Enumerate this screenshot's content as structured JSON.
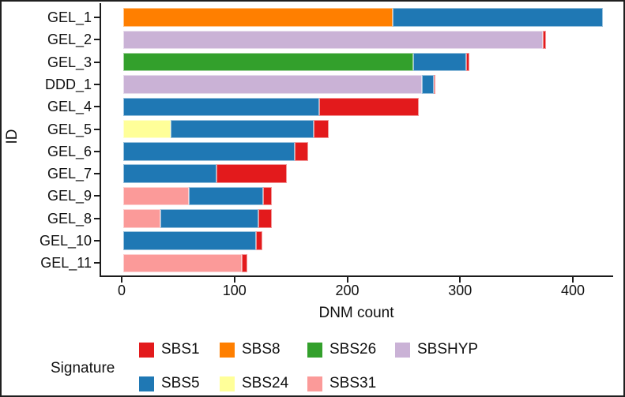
{
  "signatures": {
    "SBS1": "#e31a1c",
    "SBS5": "#1f78b4",
    "SBS8": "#ff7f00",
    "SBS24": "#ffff99",
    "SBS26": "#33a02c",
    "SBS31": "#fb9a99",
    "SBSHYP": "#cab2d6"
  },
  "legend": {
    "title": "Signature",
    "rows": [
      [
        "SBS1",
        "SBS8",
        "SBS26",
        "SBSHYP"
      ],
      [
        "SBS5",
        "SBS24",
        "SBS31"
      ]
    ]
  },
  "chart_data": {
    "type": "bar",
    "orientation": "horizontal",
    "stacked": true,
    "title": "",
    "xlabel": "DNM count",
    "ylabel": "ID",
    "xlim": [
      0,
      435
    ],
    "xticks": [
      0,
      100,
      200,
      300,
      400
    ],
    "grid": false,
    "legend_position": "bottom",
    "categories": [
      "GEL_1",
      "GEL_2",
      "GEL_3",
      "DDD_1",
      "GEL_4",
      "GEL_5",
      "GEL_6",
      "GEL_7",
      "GEL_9",
      "GEL_8",
      "GEL_10",
      "GEL_11"
    ],
    "rows": [
      {
        "id": "GEL_1",
        "total": 425,
        "segments": [
          {
            "signature": "SBS8",
            "value": 239
          },
          {
            "signature": "SBS5",
            "value": 186
          }
        ]
      },
      {
        "id": "GEL_2",
        "total": 375,
        "segments": [
          {
            "signature": "SBSHYP",
            "value": 372
          },
          {
            "signature": "SBS1",
            "value": 3
          }
        ]
      },
      {
        "id": "GEL_3",
        "total": 307,
        "segments": [
          {
            "signature": "SBS26",
            "value": 257
          },
          {
            "signature": "SBS5",
            "value": 47
          },
          {
            "signature": "SBS1",
            "value": 3
          }
        ]
      },
      {
        "id": "DDD_1",
        "total": 277,
        "segments": [
          {
            "signature": "SBSHYP",
            "value": 265
          },
          {
            "signature": "SBS5",
            "value": 10
          },
          {
            "signature": "SBS1",
            "value": 2
          }
        ]
      },
      {
        "id": "GEL_4",
        "total": 262,
        "segments": [
          {
            "signature": "SBS5",
            "value": 174
          },
          {
            "signature": "SBS1",
            "value": 88
          }
        ]
      },
      {
        "id": "GEL_5",
        "total": 182,
        "segments": [
          {
            "signature": "SBS24",
            "value": 42
          },
          {
            "signature": "SBS5",
            "value": 127
          },
          {
            "signature": "SBS1",
            "value": 13
          }
        ]
      },
      {
        "id": "GEL_6",
        "total": 164,
        "segments": [
          {
            "signature": "SBS5",
            "value": 152
          },
          {
            "signature": "SBS1",
            "value": 12
          }
        ]
      },
      {
        "id": "GEL_7",
        "total": 145,
        "segments": [
          {
            "signature": "SBS5",
            "value": 83
          },
          {
            "signature": "SBS1",
            "value": 62
          }
        ]
      },
      {
        "id": "GEL_9",
        "total": 132,
        "segments": [
          {
            "signature": "SBS31",
            "value": 58
          },
          {
            "signature": "SBS5",
            "value": 66
          },
          {
            "signature": "SBS1",
            "value": 8
          }
        ]
      },
      {
        "id": "GEL_8",
        "total": 132,
        "segments": [
          {
            "signature": "SBS31",
            "value": 33
          },
          {
            "signature": "SBS5",
            "value": 87
          },
          {
            "signature": "SBS1",
            "value": 12
          }
        ]
      },
      {
        "id": "GEL_10",
        "total": 123,
        "segments": [
          {
            "signature": "SBS5",
            "value": 118
          },
          {
            "signature": "SBS1",
            "value": 5
          }
        ]
      },
      {
        "id": "GEL_11",
        "total": 110,
        "segments": [
          {
            "signature": "SBS31",
            "value": 105
          },
          {
            "signature": "SBS1",
            "value": 5
          }
        ]
      }
    ]
  }
}
